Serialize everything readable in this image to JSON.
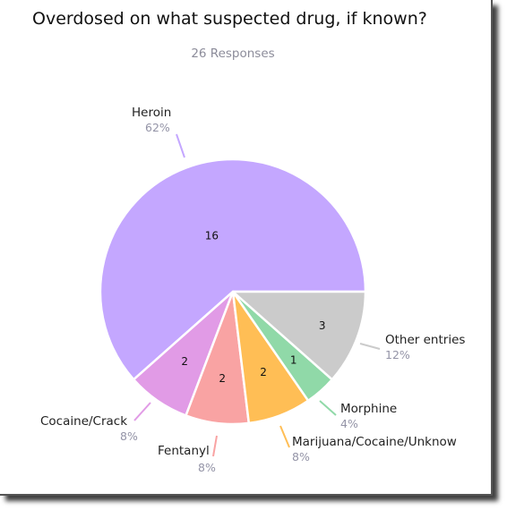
{
  "chart_data": {
    "type": "pie",
    "title": "Overdosed on what suspected drug, if known?",
    "subtitle": "26 Responses",
    "colors": {
      "heroin": "#c4a7ff",
      "cocaine": "#e19be6",
      "fentanyl": "#f9a3a3",
      "marijuana": "#ffbe55",
      "morphine": "#90d9a8",
      "other": "#cbcbcb",
      "label_percent": "#9494a7",
      "label_name": "#222222"
    },
    "slices": [
      {
        "key": "heroin",
        "name": "Heroin",
        "value": 16,
        "percent": "62%"
      },
      {
        "key": "cocaine",
        "name": "Cocaine/Crack",
        "value": 2,
        "percent": "8%"
      },
      {
        "key": "fentanyl",
        "name": "Fentanyl",
        "value": 2,
        "percent": "8%"
      },
      {
        "key": "marijuana",
        "name": "Marijuana/Cocaine/Unknow",
        "value": 2,
        "percent": "8%"
      },
      {
        "key": "morphine",
        "name": "Morphine",
        "value": 1,
        "percent": "4%"
      },
      {
        "key": "other",
        "name": "Other entries",
        "value": 3,
        "percent": "12%"
      }
    ]
  }
}
